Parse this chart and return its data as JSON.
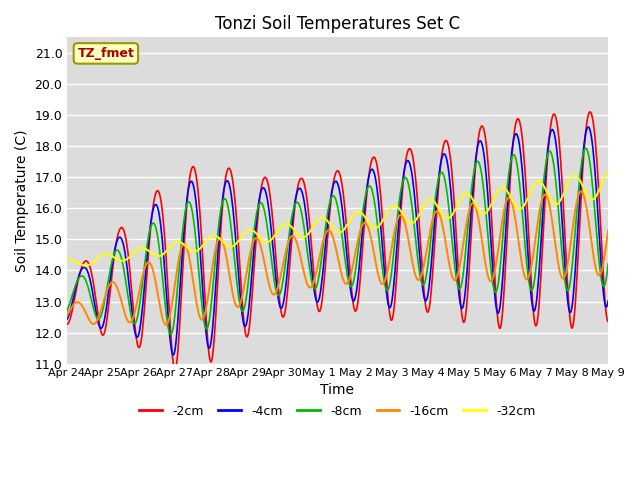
{
  "title": "Tonzi Soil Temperatures Set C",
  "xlabel": "Time",
  "ylabel": "Soil Temperature (C)",
  "ylim": [
    11.0,
    21.5
  ],
  "yticks": [
    11.0,
    12.0,
    13.0,
    14.0,
    15.0,
    16.0,
    17.0,
    18.0,
    19.0,
    20.0,
    21.0
  ],
  "x_labels": [
    "Apr 24",
    "Apr 25",
    "Apr 26",
    "Apr 27",
    "Apr 28",
    "Apr 29",
    "Apr 30",
    "May 1",
    "May 2",
    "May 3",
    "May 4",
    "May 5",
    "May 6",
    "May 7",
    "May 8",
    "May 9"
  ],
  "colors": {
    "-2cm": "#ff0000",
    "-4cm": "#0000ff",
    "-8cm": "#00bb00",
    "-16cm": "#ff8800",
    "-32cm": "#ffff00"
  },
  "legend_label": "TZ_fmet",
  "bg_color": "#dcdcdc",
  "n_days": 15,
  "n_per_day": 48
}
